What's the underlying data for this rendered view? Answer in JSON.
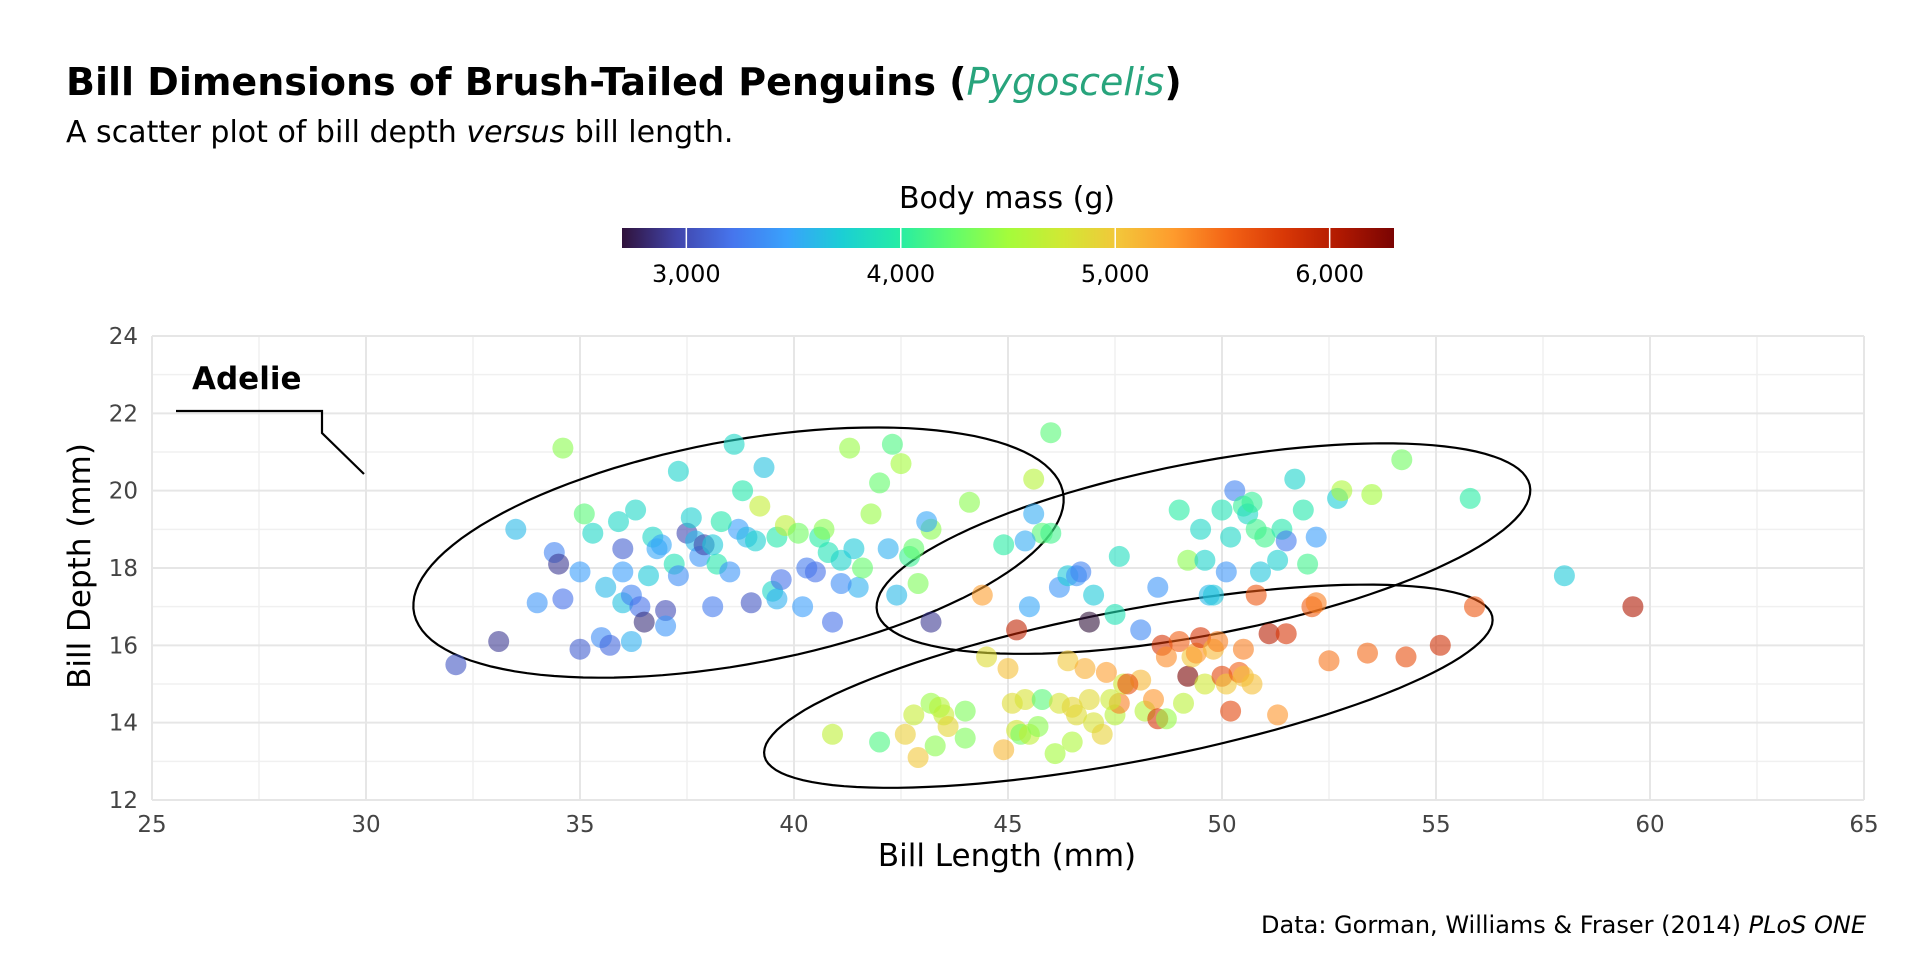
{
  "page": {
    "title_main": "Bill Dimensions of Brush-Tailed Penguins (",
    "title_italic": "Pygoscelis",
    "title_end": ")",
    "subtitle_pre": "A scatter plot of bill depth ",
    "subtitle_italic": "versus",
    "subtitle_post": " bill length.",
    "caption_plain": "Data: Gorman, Williams & Fraser (2014) ",
    "caption_italic": "PLoS ONE",
    "title_accent_color": "#28a47c"
  },
  "chart_data": {
    "type": "scatter",
    "xlabel": "Bill Length (mm)",
    "ylabel": "Bill Depth (mm)",
    "xlim": [
      25,
      65
    ],
    "ylim": [
      12,
      24
    ],
    "x_ticks": [
      25,
      30,
      35,
      40,
      45,
      50,
      55,
      60,
      65
    ],
    "y_ticks": [
      12,
      14,
      16,
      18,
      20,
      22,
      24
    ],
    "grid": true,
    "color_legend": {
      "title": "Body mass (g)",
      "position": "top",
      "range": [
        2700,
        6300
      ],
      "breaks": [
        3000,
        4000,
        5000,
        6000
      ],
      "labels": [
        "3,000",
        "4,000",
        "5,000",
        "6,000"
      ],
      "palette": [
        "#30123b",
        "#4145ab",
        "#4675ed",
        "#39a2fc",
        "#1bcfd4",
        "#24eca6",
        "#61fc6c",
        "#a4fc3b",
        "#d1e834",
        "#f3c63a",
        "#fe9b2d",
        "#f36315",
        "#d93806",
        "#b11901",
        "#7a0403"
      ]
    },
    "annotation": {
      "label": "Adelie"
    },
    "point_opacity": 0.6,
    "series": [
      {
        "points": [
          [
            32.1,
            15.5,
            3050
          ],
          [
            33.1,
            16.1,
            2900
          ],
          [
            33.5,
            19.0,
            3600
          ],
          [
            34.0,
            17.1,
            3400
          ],
          [
            34.4,
            18.4,
            3300
          ],
          [
            34.5,
            18.1,
            2900
          ],
          [
            34.6,
            21.1,
            4400
          ],
          [
            34.6,
            17.2,
            3200
          ],
          [
            35.0,
            17.9,
            3450
          ],
          [
            35.1,
            19.4,
            4200
          ],
          [
            35.3,
            18.9,
            3800
          ],
          [
            35.5,
            16.2,
            3350
          ],
          [
            35.6,
            17.5,
            3600
          ],
          [
            35.7,
            16.0,
            3150
          ],
          [
            35.9,
            19.2,
            3800
          ],
          [
            35.0,
            15.9,
            3100
          ],
          [
            36.0,
            17.1,
            3650
          ],
          [
            36.0,
            18.5,
            3100
          ],
          [
            36.2,
            16.1,
            3550
          ],
          [
            36.2,
            17.3,
            3300
          ],
          [
            36.3,
            19.5,
            3800
          ],
          [
            36.4,
            17.0,
            3200
          ],
          [
            36.5,
            16.6,
            2850
          ],
          [
            36.6,
            17.8,
            3700
          ],
          [
            36.7,
            18.8,
            3800
          ],
          [
            36.8,
            18.5,
            3500
          ],
          [
            37.0,
            16.9,
            3000
          ],
          [
            37.2,
            18.1,
            3900
          ],
          [
            37.3,
            17.8,
            3350
          ],
          [
            37.5,
            18.9,
            2975
          ],
          [
            37.6,
            19.3,
            3750
          ],
          [
            37.7,
            18.7,
            3600
          ],
          [
            37.8,
            18.3,
            3400
          ],
          [
            37.9,
            18.6,
            2950
          ],
          [
            38.1,
            17.0,
            3250
          ],
          [
            38.2,
            18.1,
            3950
          ],
          [
            38.5,
            17.9,
            3400
          ],
          [
            38.6,
            21.2,
            3800
          ],
          [
            38.7,
            19.0,
            3450
          ],
          [
            38.8,
            20.0,
            3950
          ],
          [
            38.9,
            18.8,
            3600
          ],
          [
            39.0,
            17.1,
            3050
          ],
          [
            39.1,
            18.7,
            3750
          ],
          [
            39.2,
            19.6,
            4675
          ],
          [
            39.3,
            20.6,
            3650
          ],
          [
            39.5,
            17.4,
            3800
          ],
          [
            39.6,
            18.8,
            3950
          ],
          [
            39.7,
            17.7,
            3200
          ],
          [
            39.8,
            19.1,
            4650
          ],
          [
            40.1,
            18.9,
            4300
          ],
          [
            40.2,
            17.0,
            3450
          ],
          [
            40.3,
            18.0,
            3250
          ],
          [
            40.6,
            18.8,
            4000
          ],
          [
            40.7,
            19.0,
            4400
          ],
          [
            40.8,
            18.4,
            3900
          ],
          [
            40.9,
            16.6,
            3200
          ],
          [
            41.1,
            18.2,
            3775
          ],
          [
            41.3,
            21.1,
            4450
          ],
          [
            41.4,
            18.5,
            3700
          ],
          [
            41.5,
            17.5,
            3550
          ],
          [
            41.6,
            18.0,
            4250
          ],
          [
            41.8,
            19.4,
            4450
          ],
          [
            42.0,
            20.2,
            4250
          ],
          [
            42.2,
            18.5,
            3550
          ],
          [
            42.3,
            21.2,
            4150
          ],
          [
            42.5,
            20.7,
            4500
          ],
          [
            42.7,
            18.3,
            4075
          ],
          [
            42.8,
            18.5,
            4250
          ],
          [
            42.9,
            17.6,
            4350
          ],
          [
            43.2,
            19.0,
            4400
          ],
          [
            44.1,
            19.7,
            4400
          ],
          [
            44.9,
            18.6,
            4000
          ],
          [
            45.8,
            18.9,
            4200
          ],
          [
            45.6,
            20.3,
            4600
          ],
          [
            46.0,
            21.5,
            4200
          ],
          [
            36.0,
            17.9,
            3450
          ],
          [
            37.3,
            20.5,
            3775
          ],
          [
            39.6,
            17.2,
            3550
          ],
          [
            40.5,
            17.9,
            3200
          ],
          [
            41.1,
            17.6,
            3350
          ],
          [
            43.1,
            19.2,
            3500
          ],
          [
            38.1,
            18.6,
            3700
          ],
          [
            37.0,
            16.5,
            3400
          ],
          [
            38.3,
            19.2,
            3950
          ],
          [
            36.9,
            18.6,
            3500
          ]
        ]
      },
      {
        "points": [
          [
            40.9,
            13.7,
            4650
          ],
          [
            42.0,
            13.5,
            4150
          ],
          [
            42.6,
            13.7,
            4950
          ],
          [
            42.8,
            14.2,
            4700
          ],
          [
            42.9,
            13.1,
            5000
          ],
          [
            43.2,
            14.5,
            4450
          ],
          [
            43.3,
            13.4,
            4400
          ],
          [
            43.5,
            14.2,
            4700
          ],
          [
            43.6,
            13.9,
            4900
          ],
          [
            44.0,
            13.6,
            4350
          ],
          [
            44.4,
            17.3,
            5250
          ],
          [
            44.5,
            15.7,
            4850
          ],
          [
            44.9,
            13.3,
            5100
          ],
          [
            45.0,
            15.4,
            5050
          ],
          [
            45.1,
            14.5,
            4850
          ],
          [
            45.2,
            13.8,
            4750
          ],
          [
            45.3,
            13.7,
            4300
          ],
          [
            45.4,
            14.6,
            4800
          ],
          [
            45.5,
            13.7,
            4650
          ],
          [
            45.7,
            13.9,
            4400
          ],
          [
            45.8,
            14.6,
            4200
          ],
          [
            46.1,
            13.2,
            4500
          ],
          [
            46.2,
            14.5,
            4800
          ],
          [
            46.4,
            15.6,
            5000
          ],
          [
            46.5,
            13.5,
            4550
          ],
          [
            46.6,
            14.2,
            4850
          ],
          [
            46.8,
            15.4,
            5150
          ],
          [
            47.0,
            14.0,
            4800
          ],
          [
            47.2,
            13.7,
            4925
          ],
          [
            47.3,
            15.3,
            5250
          ],
          [
            47.5,
            14.2,
            4600
          ],
          [
            47.6,
            14.5,
            5400
          ],
          [
            47.7,
            15.0,
            4750
          ],
          [
            48.1,
            15.1,
            5100
          ],
          [
            48.2,
            14.3,
            4600
          ],
          [
            48.4,
            14.6,
            5300
          ],
          [
            48.5,
            14.1,
            5800
          ],
          [
            48.6,
            16.0,
            5800
          ],
          [
            48.7,
            15.7,
            5350
          ],
          [
            49.0,
            16.1,
            5550
          ],
          [
            49.1,
            14.5,
            4625
          ],
          [
            49.2,
            15.2,
            6300
          ],
          [
            49.3,
            15.7,
            5000
          ],
          [
            49.4,
            15.8,
            5300
          ],
          [
            49.5,
            16.2,
            5800
          ],
          [
            49.6,
            15.0,
            4750
          ],
          [
            49.8,
            15.9,
            5100
          ],
          [
            50.0,
            15.2,
            5700
          ],
          [
            50.1,
            15.0,
            5000
          ],
          [
            50.2,
            14.3,
            5700
          ],
          [
            50.4,
            15.3,
            5550
          ],
          [
            50.5,
            15.9,
            5400
          ],
          [
            50.7,
            15.0,
            5050
          ],
          [
            50.8,
            17.3,
            5600
          ],
          [
            51.1,
            16.3,
            6000
          ],
          [
            51.3,
            14.2,
            5300
          ],
          [
            51.5,
            16.3,
            5800
          ],
          [
            52.1,
            17.0,
            5550
          ],
          [
            52.2,
            17.1,
            5400
          ],
          [
            52.5,
            15.6,
            5450
          ],
          [
            53.4,
            15.8,
            5500
          ],
          [
            54.3,
            15.7,
            5650
          ],
          [
            55.1,
            16.0,
            5850
          ],
          [
            55.9,
            17.0,
            5600
          ],
          [
            59.6,
            17.0,
            6050
          ],
          [
            46.9,
            14.6,
            4875
          ],
          [
            45.2,
            16.4,
            5950
          ],
          [
            46.5,
            14.4,
            4900
          ],
          [
            47.4,
            14.6,
            4725
          ],
          [
            48.7,
            14.1,
            4450
          ],
          [
            49.9,
            16.1,
            5400
          ],
          [
            50.5,
            15.2,
            5050
          ],
          [
            44.0,
            14.3,
            4350
          ],
          [
            43.4,
            14.4,
            4600
          ],
          [
            47.8,
            15.0,
            5650
          ]
        ]
      },
      {
        "points": [
          [
            45.4,
            18.7,
            3525
          ],
          [
            45.5,
            17.0,
            3500
          ],
          [
            46.0,
            18.9,
            4100
          ],
          [
            46.2,
            17.5,
            3400
          ],
          [
            46.4,
            17.8,
            3700
          ],
          [
            46.6,
            17.8,
            3400
          ],
          [
            46.7,
            17.9,
            3300
          ],
          [
            46.9,
            16.6,
            2700
          ],
          [
            47.0,
            17.3,
            3700
          ],
          [
            47.5,
            16.8,
            3900
          ],
          [
            47.6,
            18.3,
            3850
          ],
          [
            48.1,
            16.4,
            3325
          ],
          [
            48.5,
            17.5,
            3400
          ],
          [
            49.0,
            19.5,
            4000
          ],
          [
            49.2,
            18.2,
            4400
          ],
          [
            49.5,
            19.0,
            3800
          ],
          [
            49.6,
            18.2,
            3775
          ],
          [
            49.7,
            17.3,
            3600
          ],
          [
            49.8,
            17.3,
            3675
          ],
          [
            50.0,
            19.5,
            3900
          ],
          [
            50.1,
            17.9,
            3400
          ],
          [
            50.2,
            18.8,
            3800
          ],
          [
            50.3,
            20.0,
            3300
          ],
          [
            50.5,
            19.6,
            4050
          ],
          [
            50.6,
            19.4,
            3800
          ],
          [
            50.7,
            19.7,
            4050
          ],
          [
            50.8,
            19.0,
            4100
          ],
          [
            50.9,
            17.9,
            3675
          ],
          [
            51.0,
            18.8,
            4100
          ],
          [
            51.3,
            18.2,
            3750
          ],
          [
            51.4,
            19.0,
            3950
          ],
          [
            51.5,
            18.7,
            3250
          ],
          [
            51.7,
            20.3,
            3775
          ],
          [
            51.9,
            19.5,
            3950
          ],
          [
            52.0,
            18.1,
            4100
          ],
          [
            52.2,
            18.8,
            3450
          ],
          [
            52.7,
            19.8,
            3725
          ],
          [
            52.8,
            20.0,
            4550
          ],
          [
            53.5,
            19.9,
            4500
          ],
          [
            54.2,
            20.8,
            4300
          ],
          [
            55.8,
            19.8,
            4000
          ],
          [
            58.0,
            17.8,
            3700
          ],
          [
            42.4,
            17.3,
            3600
          ],
          [
            43.2,
            16.6,
            2900
          ],
          [
            45.6,
            19.4,
            3525
          ]
        ]
      }
    ]
  }
}
